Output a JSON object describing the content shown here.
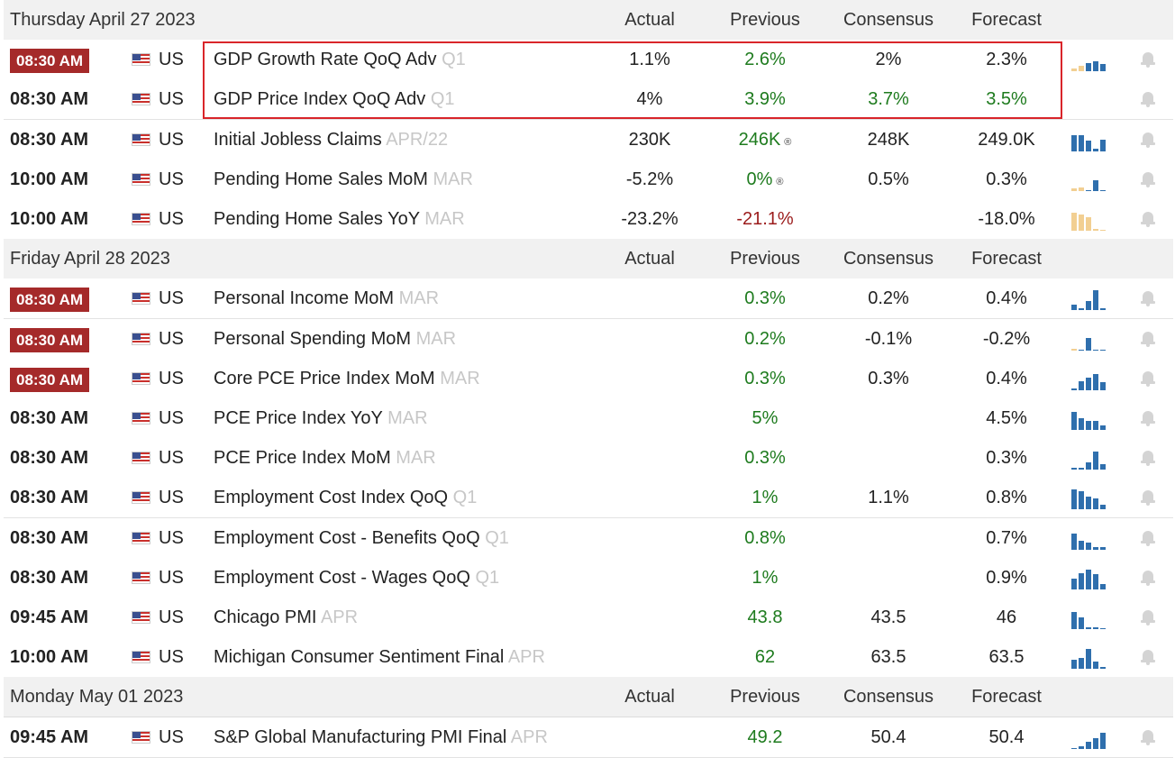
{
  "columns": {
    "actual": "Actual",
    "previous": "Previous",
    "consensus": "Consensus",
    "forecast": "Forecast"
  },
  "groups": [
    {
      "date": "Thursday April 27 2023",
      "rows": [
        {
          "time": "08:30 AM",
          "hot": true,
          "country": "US",
          "event": "GDP Growth Rate QoQ Adv",
          "period": "Q1",
          "actual": "1.1%",
          "previous": "2.6%",
          "previous_color": "green",
          "consensus": "2%",
          "consensus_color": "default",
          "forecast": "2.3%",
          "forecast_color": "default",
          "revised": false,
          "spark_icon": "mini-bar-chart",
          "bell_icon": "bell-icon"
        },
        {
          "time": "08:30 AM",
          "hot": false,
          "country": "US",
          "event": "GDP Price Index QoQ Adv",
          "period": "Q1",
          "actual": "4%",
          "previous": "3.9%",
          "previous_color": "green",
          "consensus": "3.7%",
          "consensus_color": "green",
          "forecast": "3.5%",
          "forecast_color": "green",
          "revised": false
        },
        {
          "time": "08:30 AM",
          "hot": false,
          "country": "US",
          "event": "Initial Jobless Claims",
          "period": "APR/22",
          "actual": "230K",
          "previous": "246K",
          "previous_color": "green",
          "consensus": "248K",
          "consensus_color": "default",
          "forecast": "249.0K",
          "forecast_color": "default",
          "revised": true
        },
        {
          "time": "10:00 AM",
          "hot": false,
          "country": "US",
          "event": "Pending Home Sales MoM",
          "period": "MAR",
          "actual": "-5.2%",
          "previous": "0%",
          "previous_color": "green",
          "consensus": "0.5%",
          "consensus_color": "default",
          "forecast": "0.3%",
          "forecast_color": "default",
          "revised": true
        },
        {
          "time": "10:00 AM",
          "hot": false,
          "country": "US",
          "event": "Pending Home Sales YoY",
          "period": "MAR",
          "actual": "-23.2%",
          "previous": "-21.1%",
          "previous_color": "red",
          "consensus": "",
          "consensus_color": "default",
          "forecast": "-18.0%",
          "forecast_color": "default",
          "revised": false
        }
      ]
    },
    {
      "date": "Friday April 28 2023",
      "rows": [
        {
          "time": "08:30 AM",
          "hot": true,
          "country": "US",
          "event": "Personal Income MoM",
          "period": "MAR",
          "actual": "",
          "previous": "0.3%",
          "previous_color": "green",
          "consensus": "0.2%",
          "consensus_color": "default",
          "forecast": "0.4%",
          "forecast_color": "default",
          "revised": false
        },
        {
          "time": "08:30 AM",
          "hot": true,
          "country": "US",
          "event": "Personal Spending MoM",
          "period": "MAR",
          "actual": "",
          "previous": "0.2%",
          "previous_color": "green",
          "consensus": "-0.1%",
          "consensus_color": "default",
          "forecast": "-0.2%",
          "forecast_color": "default",
          "revised": false
        },
        {
          "time": "08:30 AM",
          "hot": true,
          "country": "US",
          "event": "Core PCE Price Index MoM",
          "period": "MAR",
          "actual": "",
          "previous": "0.3%",
          "previous_color": "green",
          "consensus": "0.3%",
          "consensus_color": "default",
          "forecast": "0.4%",
          "forecast_color": "default",
          "revised": false
        },
        {
          "time": "08:30 AM",
          "hot": false,
          "country": "US",
          "event": "PCE Price Index YoY",
          "period": "MAR",
          "actual": "",
          "previous": "5%",
          "previous_color": "green",
          "consensus": "",
          "consensus_color": "default",
          "forecast": "4.5%",
          "forecast_color": "default",
          "revised": false
        },
        {
          "time": "08:30 AM",
          "hot": false,
          "country": "US",
          "event": "PCE Price Index MoM",
          "period": "MAR",
          "actual": "",
          "previous": "0.3%",
          "previous_color": "green",
          "consensus": "",
          "consensus_color": "default",
          "forecast": "0.3%",
          "forecast_color": "default",
          "revised": false
        },
        {
          "time": "08:30 AM",
          "hot": false,
          "country": "US",
          "event": "Employment Cost Index QoQ",
          "period": "Q1",
          "actual": "",
          "previous": "1%",
          "previous_color": "green",
          "consensus": "1.1%",
          "consensus_color": "default",
          "forecast": "0.8%",
          "forecast_color": "default",
          "revised": false
        },
        {
          "time": "08:30 AM",
          "hot": false,
          "country": "US",
          "event": "Employment Cost - Benefits QoQ",
          "period": "Q1",
          "actual": "",
          "previous": "0.8%",
          "previous_color": "green",
          "consensus": "",
          "consensus_color": "default",
          "forecast": "0.7%",
          "forecast_color": "default",
          "revised": false
        },
        {
          "time": "08:30 AM",
          "hot": false,
          "country": "US",
          "event": "Employment Cost - Wages QoQ",
          "period": "Q1",
          "actual": "",
          "previous": "1%",
          "previous_color": "green",
          "consensus": "",
          "consensus_color": "default",
          "forecast": "0.9%",
          "forecast_color": "default",
          "revised": false
        },
        {
          "time": "09:45 AM",
          "hot": false,
          "country": "US",
          "event": "Chicago PMI",
          "period": "APR",
          "actual": "",
          "previous": "43.8",
          "previous_color": "green",
          "consensus": "43.5",
          "consensus_color": "default",
          "forecast": "46",
          "forecast_color": "default",
          "revised": false
        },
        {
          "time": "10:00 AM",
          "hot": false,
          "country": "US",
          "event": "Michigan Consumer Sentiment Final",
          "period": "APR",
          "actual": "",
          "previous": "62",
          "previous_color": "green",
          "consensus": "63.5",
          "consensus_color": "default",
          "forecast": "63.5",
          "forecast_color": "default",
          "revised": false
        }
      ]
    },
    {
      "date": "Monday May 01 2023",
      "rows": [
        {
          "time": "09:45 AM",
          "hot": false,
          "country": "US",
          "event": "S&P Global Manufacturing PMI Final",
          "period": "APR",
          "actual": "",
          "previous": "49.2",
          "previous_color": "green",
          "consensus": "50.4",
          "consensus_color": "default",
          "forecast": "50.4",
          "forecast_color": "default",
          "revised": false
        }
      ]
    }
  ],
  "colors": {
    "hot_badge": "#a52a2a",
    "positive": "#1e7b1e",
    "negative": "#9b1c1c",
    "highlight_box": "#d9252a",
    "spark_bar": "#2f6fad",
    "spark_forecast": "#f2cf92"
  },
  "icons": {
    "flag": "us-flag-icon",
    "spark": "mini-bar-chart-icon",
    "bell": "bell-icon"
  }
}
